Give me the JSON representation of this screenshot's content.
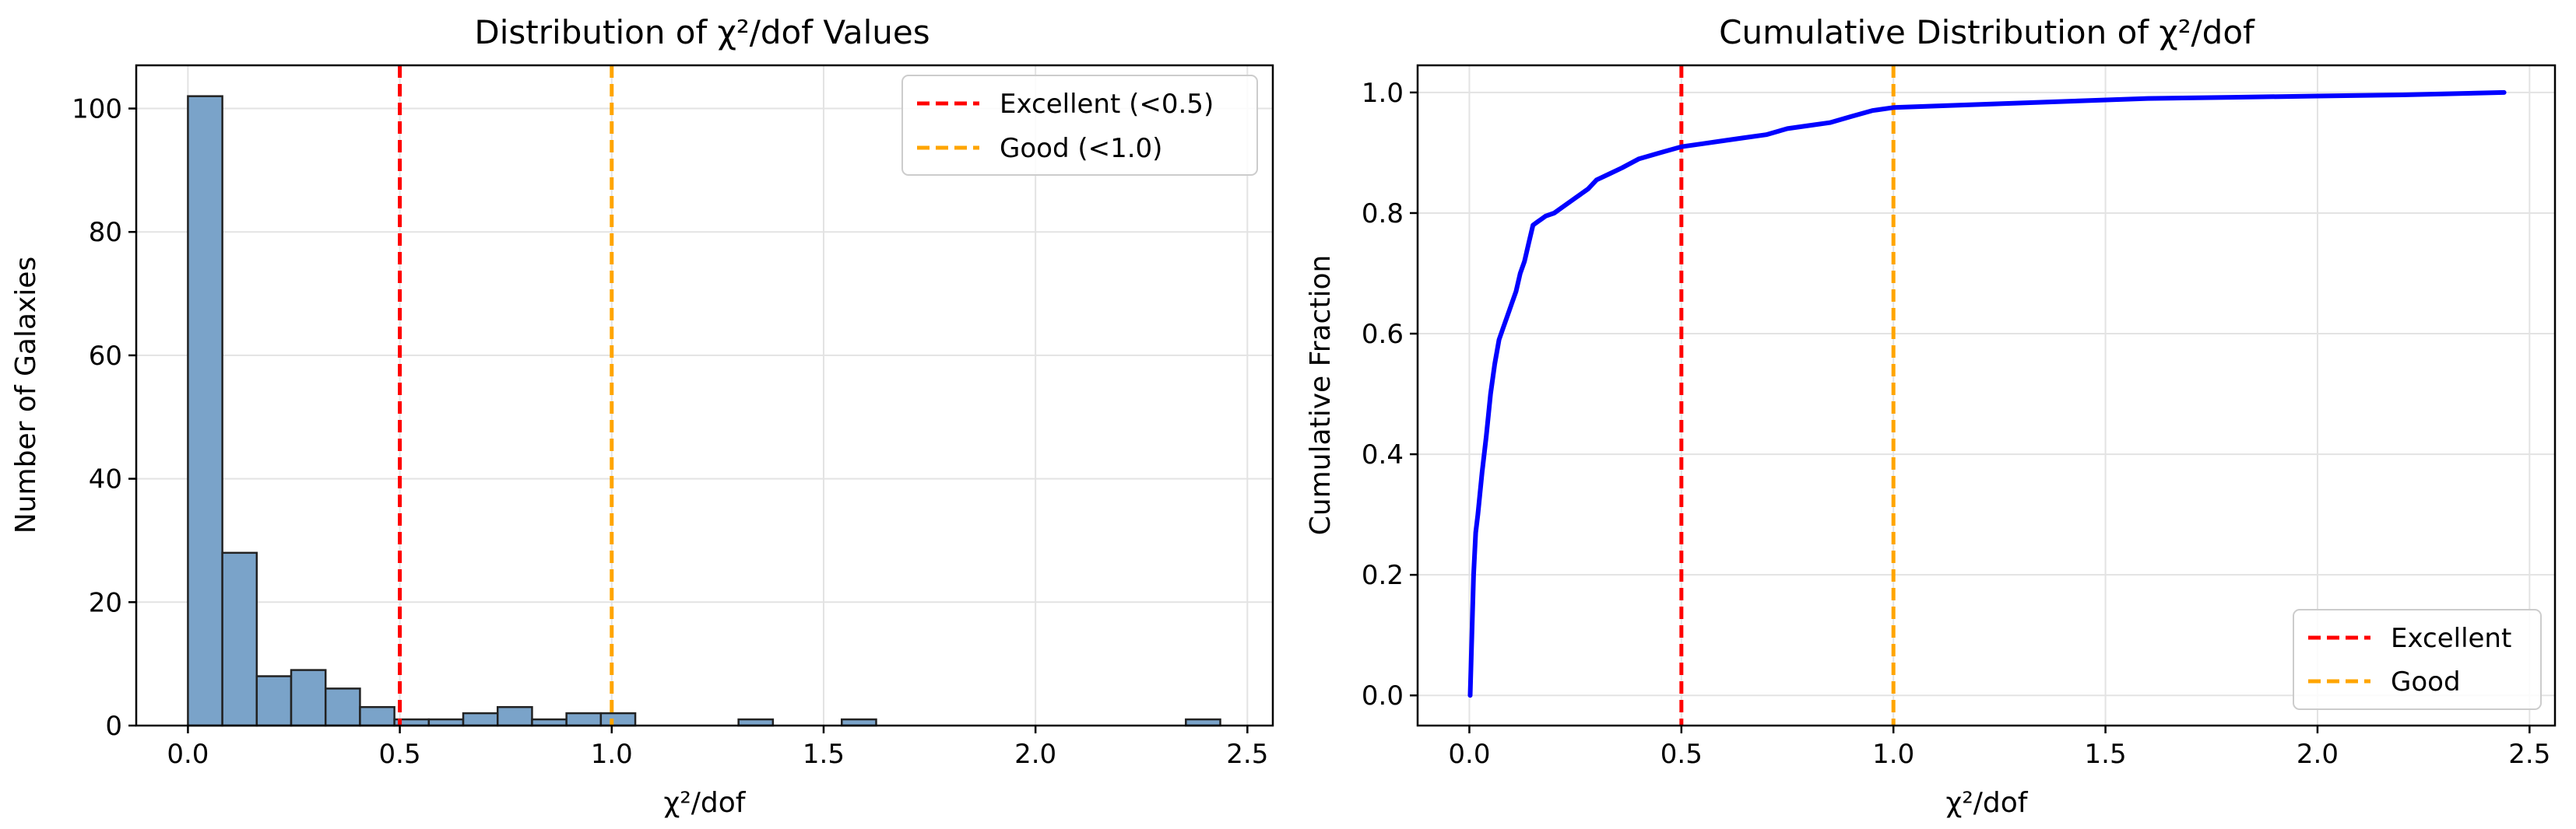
{
  "chart_data": [
    {
      "type": "bar",
      "title": "Distribution of χ²/dof Values",
      "xlabel": "χ²/dof",
      "ylabel": "Number of Galaxies",
      "xlim": [
        -0.122,
        2.56
      ],
      "ylim": [
        0,
        107
      ],
      "xticks": [
        0.0,
        0.5,
        1.0,
        1.5,
        2.0,
        2.5
      ],
      "xtick_labels": [
        "0.0",
        "0.5",
        "1.0",
        "1.5",
        "2.0",
        "2.5"
      ],
      "yticks": [
        0,
        20,
        40,
        60,
        80,
        100
      ],
      "ytick_labels": [
        "0",
        "20",
        "40",
        "60",
        "80",
        "100"
      ],
      "bin_width": 0.0812,
      "bin_start": 0.0,
      "values": [
        102,
        28,
        8,
        9,
        6,
        3,
        1,
        1,
        2,
        3,
        1,
        2,
        2,
        0,
        0,
        0,
        1,
        0,
        0,
        1,
        0,
        0,
        0,
        0,
        0,
        0,
        0,
        0,
        0,
        1
      ],
      "bar_color": "#7aa3c9",
      "grid": true,
      "legend_placement": "upper right",
      "reference_lines": [
        {
          "name": "Excellent (<0.5)",
          "x": 0.5,
          "color": "#ff0000",
          "style": "dashed"
        },
        {
          "name": "Good (<1.0)",
          "x": 1.0,
          "color": "#ffa500",
          "style": "dashed"
        }
      ]
    },
    {
      "type": "line",
      "title": "Cumulative Distribution of χ²/dof",
      "xlabel": "χ²/dof",
      "ylabel": "Cumulative Fraction",
      "xlim": [
        -0.122,
        2.56
      ],
      "ylim": [
        -0.05,
        1.045
      ],
      "xticks": [
        0.0,
        0.5,
        1.0,
        1.5,
        2.0,
        2.5
      ],
      "xtick_labels": [
        "0.0",
        "0.5",
        "1.0",
        "1.5",
        "2.0",
        "2.5"
      ],
      "yticks": [
        0.0,
        0.2,
        0.4,
        0.6,
        0.8,
        1.0
      ],
      "ytick_labels": [
        "0.0",
        "0.2",
        "0.4",
        "0.6",
        "0.8",
        "1.0"
      ],
      "grid": true,
      "legend_placement": "lower right",
      "series": [
        {
          "color": "#0000ff",
          "x": [
            0.002,
            0.006,
            0.01,
            0.015,
            0.02,
            0.03,
            0.04,
            0.05,
            0.06,
            0.07,
            0.08,
            0.09,
            0.1,
            0.11,
            0.12,
            0.13,
            0.14,
            0.15,
            0.16,
            0.17,
            0.18,
            0.2,
            0.22,
            0.25,
            0.28,
            0.3,
            0.33,
            0.36,
            0.4,
            0.45,
            0.5,
            0.55,
            0.6,
            0.65,
            0.7,
            0.75,
            0.8,
            0.85,
            0.9,
            0.95,
            1.0,
            1.2,
            1.4,
            1.6,
            1.8,
            2.0,
            2.2,
            2.44
          ],
          "y": [
            0.0,
            0.1,
            0.2,
            0.27,
            0.3,
            0.37,
            0.43,
            0.5,
            0.55,
            0.59,
            0.61,
            0.63,
            0.65,
            0.67,
            0.7,
            0.72,
            0.75,
            0.78,
            0.785,
            0.79,
            0.795,
            0.8,
            0.81,
            0.825,
            0.84,
            0.855,
            0.865,
            0.875,
            0.89,
            0.9,
            0.91,
            0.915,
            0.92,
            0.925,
            0.93,
            0.94,
            0.945,
            0.95,
            0.96,
            0.97,
            0.975,
            0.98,
            0.985,
            0.99,
            0.992,
            0.994,
            0.996,
            1.0
          ]
        }
      ],
      "reference_lines": [
        {
          "name": "Excellent",
          "x": 0.5,
          "color": "#ff0000",
          "style": "dashed"
        },
        {
          "name": "Good",
          "x": 1.0,
          "color": "#ffa500",
          "style": "dashed"
        }
      ]
    }
  ]
}
